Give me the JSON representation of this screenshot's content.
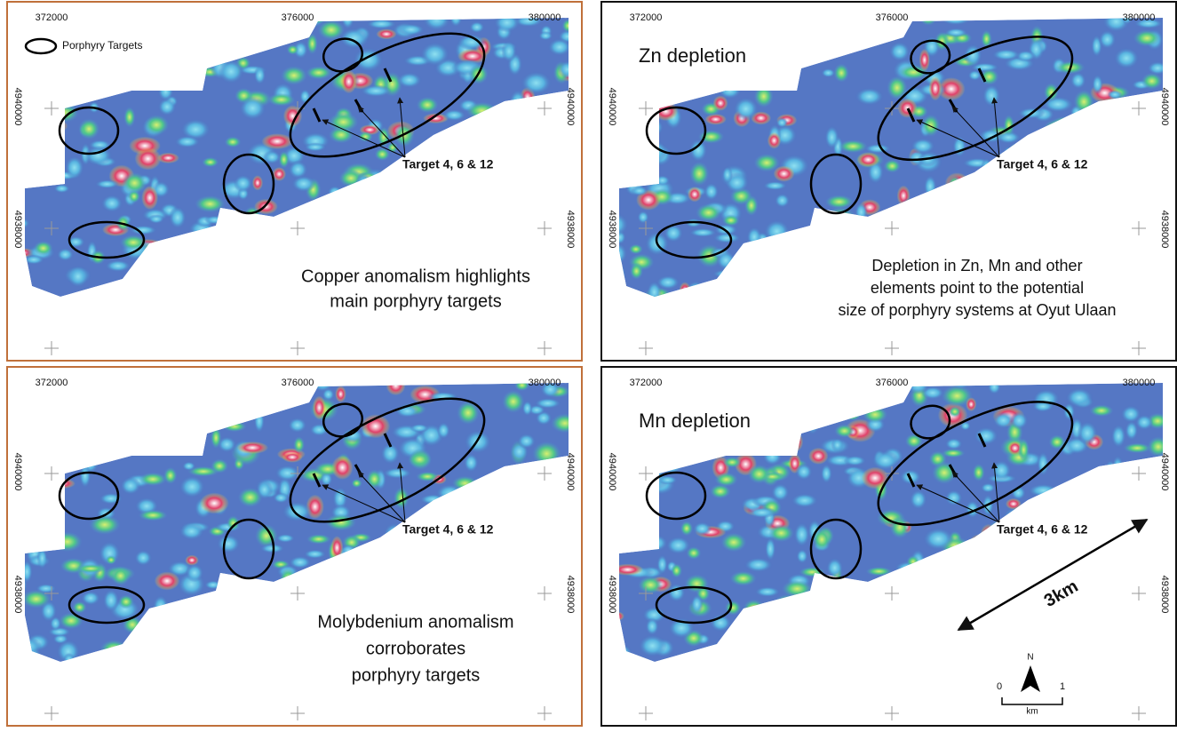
{
  "legend": {
    "label": "Porphyry Targets"
  },
  "grid": {
    "eastings": [
      372000,
      376000,
      380000
    ],
    "northings": [
      4940000,
      4938000
    ]
  },
  "target_label": "Target 4, 6 & 12",
  "panels": [
    {
      "caption": [
        "Copper anomalism highlights",
        "main porphyry targets"
      ]
    },
    {
      "title": "Zn depletion",
      "caption": [
        "Depletion in Zn, Mn and other",
        "elements point to the potential",
        "size of porphyry systems at Oyut Ulaan"
      ]
    },
    {
      "caption": [
        "Molybdenium anomalism",
        "corroborates",
        "porphyry targets"
      ]
    },
    {
      "title": "Mn depletion"
    }
  ],
  "scale": {
    "distance": "3km",
    "north": "N",
    "start": "0",
    "end": "1",
    "unit": "km"
  }
}
